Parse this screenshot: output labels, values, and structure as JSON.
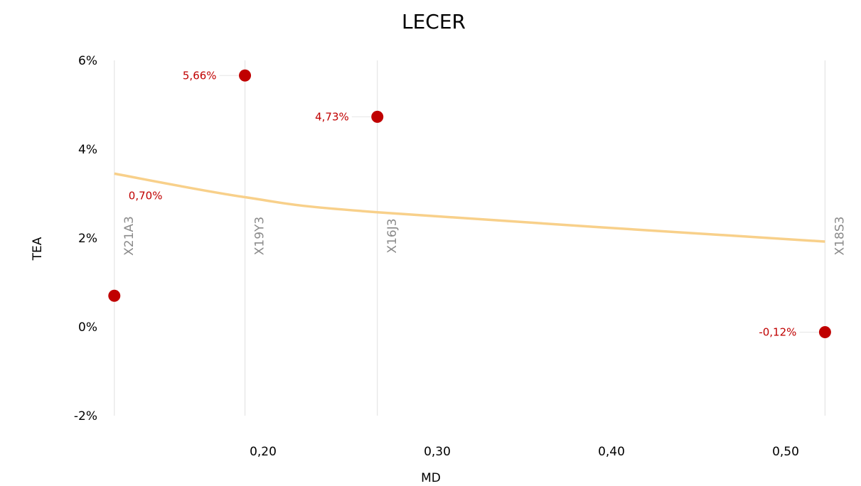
{
  "chart_data": {
    "type": "scatter",
    "title": "LECER",
    "xlabel": "MD",
    "ylabel": "TEA",
    "xlim": [
      0.125,
      0.53
    ],
    "ylim": [
      -2,
      6
    ],
    "x_ticks": [
      0.2,
      0.3,
      0.4,
      0.5
    ],
    "x_tick_labels": [
      "0,20",
      "0,30",
      "0,40",
      "0,50"
    ],
    "y_ticks": [
      -2,
      0,
      2,
      4,
      6
    ],
    "y_tick_labels": [
      "-2%",
      "0%",
      "2%",
      "4%",
      "6%"
    ],
    "grid": false,
    "points": [
      {
        "id": "X21A3",
        "x": 0.124,
        "y": 0.7,
        "label": "0,70%"
      },
      {
        "id": "X19Y3",
        "x": 0.199,
        "y": 5.66,
        "label": "5,66%"
      },
      {
        "id": "X16J3",
        "x": 0.275,
        "y": 4.73,
        "label": "4,73%"
      },
      {
        "id": "X18S3",
        "x": 0.532,
        "y": -0.12,
        "label": "-0,12%"
      }
    ],
    "trendline": {
      "type": "power",
      "points": [
        [
          0.124,
          3.45
        ],
        [
          0.199,
          2.92
        ],
        [
          0.275,
          2.58
        ],
        [
          0.532,
          1.92
        ]
      ]
    },
    "colors": {
      "point": "#c00000",
      "label": "#c00000",
      "trendline": "#f8d08a",
      "reference_line": "#e4e4e4",
      "reference_label": "#8a8a8a"
    }
  }
}
